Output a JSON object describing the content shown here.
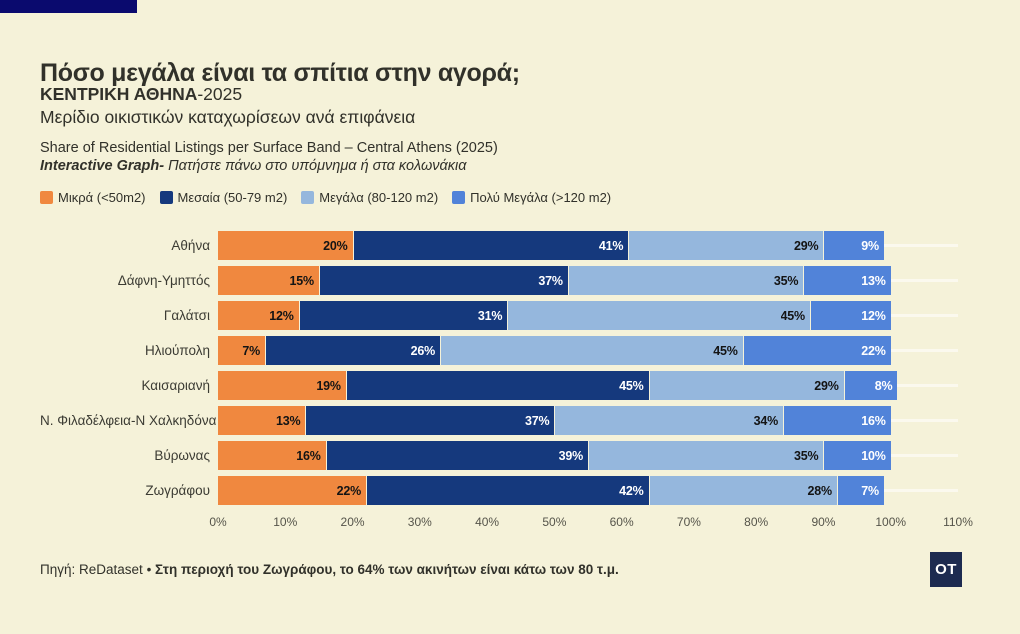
{
  "page": {
    "background": "#f5f2d9",
    "top_bar_color": "#0a0a6e"
  },
  "header": {
    "title": "Πόσο μεγάλα είναι τα σπίτια στην αγορά;",
    "subtitle_bold": "ΚΕΝΤΡΙΚΗ ΑΘΗΝΑ",
    "subtitle_year": "-2025",
    "subtitle2": "Μερίδιο οικιστικών καταχωρίσεων ανά επιφάνεια",
    "subtitle_en": "Share of Residential Listings per Surface Band – Central Athens (2025)",
    "interactive_bold": "Interactive Graph-",
    "interactive_rest": " Πατήστε πάνω στο υπόμνημα ή στα κολωνάκια"
  },
  "legend": [
    {
      "label": "Μικρά (<50m2)",
      "color": "#f0883f"
    },
    {
      "label": "Μεσαία (50-79 m2)",
      "color": "#15397d"
    },
    {
      "label": "Μεγάλα (80-120 m2)",
      "color": "#95b7dd"
    },
    {
      "label": "Πολύ Μεγάλα (>120 m2)",
      "color": "#5183d9"
    }
  ],
  "chart_data": {
    "type": "bar",
    "orientation": "horizontal",
    "stacked": true,
    "grid": "faint-horizontal-row-lines",
    "legend_position": "top-left",
    "value_suffix": "%",
    "xlim": [
      0,
      110
    ],
    "x_ticks": [
      "0%",
      "10%",
      "20%",
      "30%",
      "40%",
      "50%",
      "60%",
      "70%",
      "80%",
      "90%",
      "100%",
      "110%"
    ],
    "categories": [
      "Αθήνα",
      "Δάφνη-Υμηττός",
      "Γαλάτσι",
      "Ηλιούπολη",
      "Καισαριανή",
      "Ν. Φιλαδέλφεια-Ν Χαλκηδόνα",
      "Βύρωνας",
      "Ζωγράφου"
    ],
    "series": [
      {
        "name": "Μικρά (<50m2)",
        "color": "#f0883f",
        "label_color": "#141414",
        "values": [
          20,
          15,
          12,
          7,
          19,
          13,
          16,
          22
        ]
      },
      {
        "name": "Μεσαία (50-79 m2)",
        "color": "#15397d",
        "label_color": "#ffffff",
        "values": [
          41,
          37,
          31,
          26,
          45,
          37,
          39,
          42
        ]
      },
      {
        "name": "Μεγάλα (80-120 m2)",
        "color": "#95b7dd",
        "label_color": "#141414",
        "values": [
          29,
          35,
          45,
          45,
          29,
          34,
          35,
          28
        ]
      },
      {
        "name": "Πολύ Μεγάλα (>120 m2)",
        "color": "#5183d9",
        "label_color": "#ffffff",
        "values": [
          9,
          13,
          12,
          22,
          8,
          16,
          10,
          7
        ]
      }
    ]
  },
  "footer": {
    "source": "Πηγή: ReDataset",
    "separator": " • ",
    "note": "Στη περιοχή του Ζωγράφου, το 64% των ακινήτων είναι κάτω των 80 τ.μ.",
    "logo": "OT",
    "logo_color": "#1d2b50"
  }
}
